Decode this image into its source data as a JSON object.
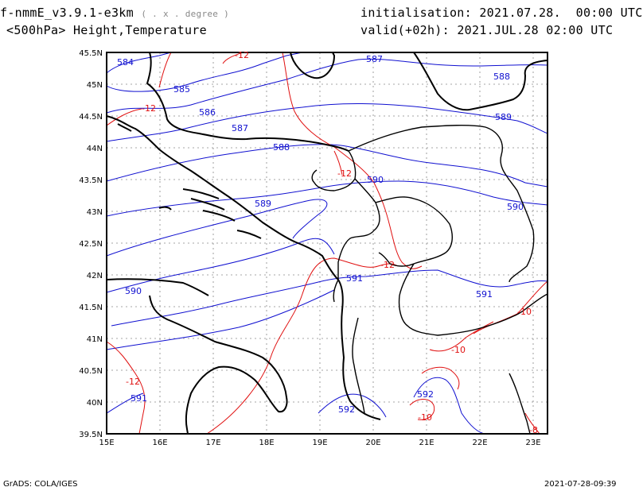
{
  "header": {
    "model": "f-nmmE_v3.9.1-e3km",
    "units": "( . x . degree )",
    "init_label": "initialisation:",
    "init_value": "2021.07.28.  00:00 UTC",
    "field": "<500hPa> Height,Temperature",
    "valid_label": "valid(+02h):",
    "valid_value": "2021.JUL.28 02:00 UTC"
  },
  "footer": {
    "left": "GrADS: COLA/IGES",
    "right": "2021-07-28-09:39"
  },
  "axes": {
    "lon_labels": [
      "15E",
      "16E",
      "17E",
      "18E",
      "19E",
      "20E",
      "21E",
      "22E",
      "23E"
    ],
    "lat_labels": [
      "45.5N",
      "45N",
      "44.5N",
      "44N",
      "43.5N",
      "43N",
      "42.5N",
      "42N",
      "41.5N",
      "41N",
      "40.5N",
      "40N",
      "39.5N"
    ]
  },
  "height_labels": [
    "584",
    "585",
    "586",
    "587",
    "587",
    "588",
    "588",
    "589",
    "589",
    "590",
    "590",
    "590",
    "591",
    "591",
    "591",
    "592",
    "592"
  ],
  "temp_labels": [
    "-12",
    "-12",
    "-12",
    "-12",
    "-10",
    "-10",
    "-10",
    "-8",
    "-12"
  ],
  "colors": {
    "height": "#1010d0",
    "temperature": "#e01010",
    "coast": "#000000",
    "grid": "#888888"
  }
}
